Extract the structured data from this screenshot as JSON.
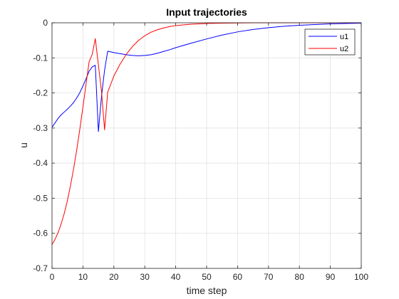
{
  "chart_data": {
    "type": "line",
    "title": "Input trajectories",
    "xlabel": "time step",
    "ylabel": "u",
    "xlim": [
      0,
      100
    ],
    "ylim": [
      -0.7,
      0
    ],
    "xticks": [
      0,
      10,
      20,
      30,
      40,
      50,
      60,
      70,
      80,
      90,
      100
    ],
    "yticks": [
      -0.7,
      -0.6,
      -0.5,
      -0.4,
      -0.3,
      -0.2,
      -0.1,
      0
    ],
    "grid": true,
    "legend_position": "top-right",
    "series": [
      {
        "name": "u1",
        "color": "#0000ff",
        "x": [
          0,
          1,
          2,
          3,
          4,
          5,
          6,
          7,
          8,
          9,
          10,
          11,
          12,
          13,
          14,
          15,
          16,
          17,
          18,
          19,
          20,
          22,
          24,
          26,
          28,
          30,
          32,
          34,
          36,
          38,
          40,
          45,
          50,
          55,
          60,
          65,
          70,
          75,
          80,
          85,
          90,
          95,
          100
        ],
        "y": [
          -0.298,
          -0.285,
          -0.272,
          -0.262,
          -0.254,
          -0.246,
          -0.237,
          -0.227,
          -0.214,
          -0.199,
          -0.18,
          -0.16,
          -0.138,
          -0.126,
          -0.121,
          -0.31,
          -0.21,
          -0.135,
          -0.081,
          -0.083,
          -0.085,
          -0.088,
          -0.091,
          -0.093,
          -0.094,
          -0.093,
          -0.091,
          -0.087,
          -0.082,
          -0.077,
          -0.071,
          -0.058,
          -0.046,
          -0.035,
          -0.026,
          -0.019,
          -0.014,
          -0.01,
          -0.007,
          -0.005,
          -0.003,
          -0.002,
          -0.001
        ]
      },
      {
        "name": "u2",
        "color": "#ff0000",
        "x": [
          0,
          1,
          2,
          3,
          4,
          5,
          6,
          7,
          8,
          9,
          10,
          11,
          12,
          13,
          14,
          15,
          16,
          17,
          18,
          19,
          20,
          22,
          24,
          26,
          28,
          30,
          32,
          34,
          36,
          38,
          40,
          45,
          50,
          55,
          60,
          65,
          70,
          75,
          80,
          90,
          100
        ],
        "y": [
          -0.632,
          -0.617,
          -0.597,
          -0.572,
          -0.542,
          -0.506,
          -0.463,
          -0.415,
          -0.362,
          -0.303,
          -0.24,
          -0.175,
          -0.111,
          -0.09,
          -0.045,
          -0.12,
          -0.195,
          -0.305,
          -0.198,
          -0.175,
          -0.152,
          -0.118,
          -0.09,
          -0.068,
          -0.05,
          -0.037,
          -0.027,
          -0.02,
          -0.015,
          -0.011,
          -0.008,
          -0.004,
          -0.002,
          -0.001,
          -0.0005,
          0,
          0,
          0,
          0,
          0,
          0
        ]
      }
    ]
  }
}
